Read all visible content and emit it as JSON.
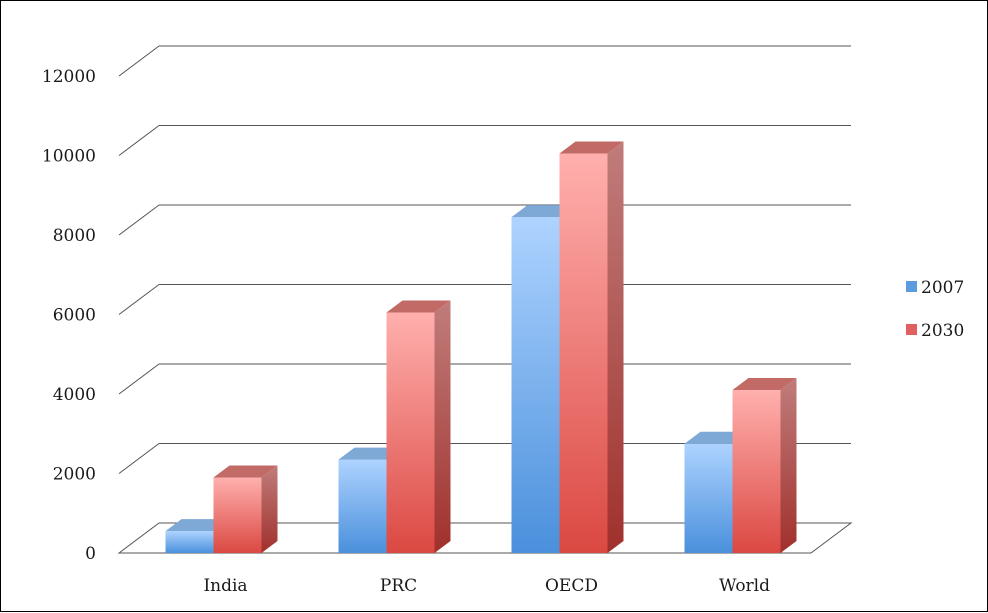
{
  "chart_data": {
    "type": "bar",
    "categories": [
      "India",
      "PRC",
      "OECD",
      "World"
    ],
    "series": [
      {
        "name": "2007",
        "values": [
          550,
          2350,
          8450,
          2750
        ],
        "color": "#5b9be0"
      },
      {
        "name": "2030",
        "values": [
          1900,
          6050,
          10050,
          4100
        ],
        "color": "#e06060"
      }
    ],
    "ylim": [
      0,
      12000
    ],
    "yticks": [
      0,
      2000,
      4000,
      6000,
      8000,
      10000,
      12000
    ],
    "grid": true,
    "legend_position": "right",
    "title": "",
    "xlabel": "",
    "ylabel": ""
  }
}
